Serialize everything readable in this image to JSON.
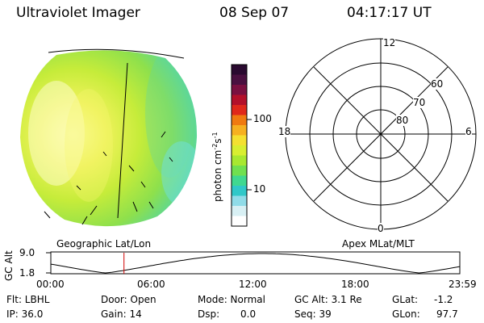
{
  "header": {
    "instrument": "Ultraviolet Imager",
    "date": "08 Sep 07",
    "time": "04:17:17 UT"
  },
  "colorbar": {
    "unit_label": "photon cm",
    "unit_sup1": "-2",
    "unit_mid": "s",
    "unit_sup2": "-1",
    "tick_100": "100",
    "tick_10": "10",
    "colors": [
      "#2a0a30",
      "#4a1040",
      "#7a1040",
      "#b3102a",
      "#e0281a",
      "#f07a10",
      "#f6b020",
      "#f4e030",
      "#d8ee30",
      "#a8e830",
      "#70e050",
      "#40d890",
      "#30c8c8",
      "#90dce8",
      "#d8f0f4",
      "#ffffff"
    ]
  },
  "left_panel_label": "Geographic Lat/Lon",
  "right_panel_label": "Apex MLat/MLT",
  "polar": {
    "mlt_top": "12",
    "mlt_left": "18",
    "mlt_right": "6",
    "mlt_bottom": "0",
    "lat_60": "60",
    "lat_70": "70",
    "lat_80": "80"
  },
  "altitude_plot": {
    "ylabel": "GC Alt",
    "ytick_top": "9.0",
    "ytick_bottom": "1.8",
    "xticks": [
      "00:00",
      "06:00",
      "12:00",
      "18:00",
      "23:59"
    ],
    "marker_time_hours": 4.29
  },
  "info": {
    "flt": "Flt: LBHL",
    "ip": "IP: 36.0",
    "door": "Door: Open",
    "gain": "Gain: 14",
    "mode": "Mode: Normal",
    "dsp_label": "Dsp:",
    "dsp_value": "0.0",
    "gc_alt": "GC Alt: 3.1 Re",
    "seq": "Seq: 39",
    "glat_label": "GLat:",
    "glat_value": "-1.2",
    "glon_label": "GLon:",
    "glon_value": "97.7"
  }
}
